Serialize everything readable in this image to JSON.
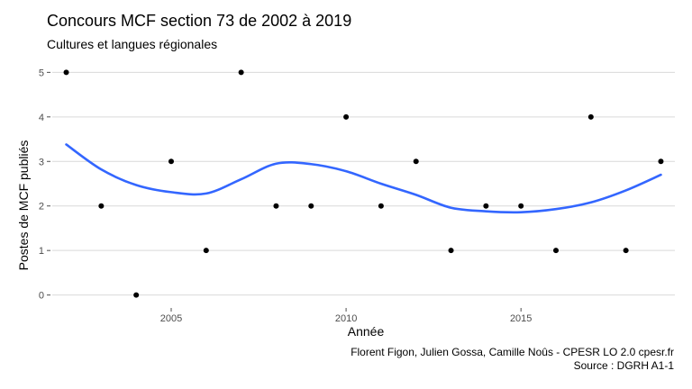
{
  "title": "Concours MCF section 73 de 2002 à 2019",
  "subtitle": "Cultures et langues régionales",
  "caption": {
    "line1": "Florent Figon, Julien Gossa, Camille Noûs - CPESR LO 2.0 cpesr.fr",
    "line2": "Source : DGRH A1-1"
  },
  "colors": {
    "point": "#000000",
    "smooth": "#3366ff",
    "grid": "#d9d9d9"
  },
  "chart_data": {
    "type": "scatter",
    "xlabel": "Année",
    "ylabel": "Postes de MCF publiés",
    "xlim": [
      2001.6,
      2019.4
    ],
    "ylim": [
      -0.25,
      5.25
    ],
    "x_ticks": [
      2005,
      2010,
      2015
    ],
    "y_ticks": [
      0,
      1,
      2,
      3,
      4,
      5
    ],
    "grid": true,
    "points": [
      {
        "x": 2002,
        "y": 5
      },
      {
        "x": 2003,
        "y": 2
      },
      {
        "x": 2004,
        "y": 0
      },
      {
        "x": 2005,
        "y": 3
      },
      {
        "x": 2006,
        "y": 1
      },
      {
        "x": 2007,
        "y": 5
      },
      {
        "x": 2008,
        "y": 2
      },
      {
        "x": 2009,
        "y": 2
      },
      {
        "x": 2010,
        "y": 4
      },
      {
        "x": 2011,
        "y": 2
      },
      {
        "x": 2012,
        "y": 3
      },
      {
        "x": 2013,
        "y": 1
      },
      {
        "x": 2014,
        "y": 2
      },
      {
        "x": 2015,
        "y": 2
      },
      {
        "x": 2016,
        "y": 1
      },
      {
        "x": 2017,
        "y": 4
      },
      {
        "x": 2018,
        "y": 1
      },
      {
        "x": 2019,
        "y": 3
      }
    ],
    "smooth_line": [
      {
        "x": 2002,
        "y": 3.38
      },
      {
        "x": 2003,
        "y": 2.82
      },
      {
        "x": 2004,
        "y": 2.47
      },
      {
        "x": 2005,
        "y": 2.31
      },
      {
        "x": 2006,
        "y": 2.28
      },
      {
        "x": 2007,
        "y": 2.6
      },
      {
        "x": 2008,
        "y": 2.95
      },
      {
        "x": 2009,
        "y": 2.94
      },
      {
        "x": 2010,
        "y": 2.78
      },
      {
        "x": 2011,
        "y": 2.5
      },
      {
        "x": 2012,
        "y": 2.25
      },
      {
        "x": 2013,
        "y": 1.96
      },
      {
        "x": 2014,
        "y": 1.88
      },
      {
        "x": 2015,
        "y": 1.86
      },
      {
        "x": 2016,
        "y": 1.93
      },
      {
        "x": 2017,
        "y": 2.08
      },
      {
        "x": 2018,
        "y": 2.35
      },
      {
        "x": 2019,
        "y": 2.7
      }
    ]
  }
}
